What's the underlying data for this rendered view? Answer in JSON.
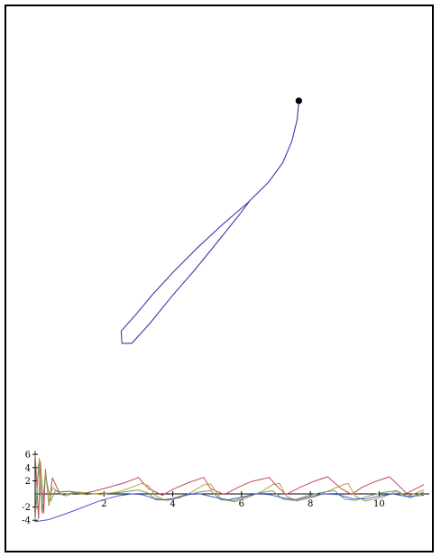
{
  "chart_data": [
    {
      "type": "line",
      "title": "",
      "xlabel": "",
      "ylabel": "",
      "grid": false,
      "series": [
        {
          "color": "#3a3aa8",
          "x": [
            7.65,
            7.6,
            7.45,
            7.2,
            6.8,
            6.2,
            5.5,
            4.8,
            4.1,
            3.5,
            3.0,
            2.6,
            2.62,
            2.9,
            3.4,
            4.05,
            4.7,
            5.35,
            5.95,
            6.25
          ],
          "y": [
            8.85,
            8.3,
            7.7,
            7.1,
            6.55,
            5.95,
            5.35,
            4.7,
            4.0,
            3.35,
            2.75,
            2.3,
            1.95,
            1.95,
            2.5,
            3.3,
            4.05,
            4.85,
            5.6,
            6.0
          ]
        }
      ],
      "markers": [
        {
          "x": 7.65,
          "y": 8.85,
          "color": "#000000"
        }
      ]
    },
    {
      "type": "line",
      "title": "",
      "xlabel": "",
      "ylabel": "",
      "xlim": [
        0,
        11.3
      ],
      "ylim": [
        -4.2,
        6.5
      ],
      "x_ticks": [
        2,
        4,
        6,
        8,
        10
      ],
      "x_tick_labels": [
        "2",
        "4",
        "6",
        "8",
        "10"
      ],
      "y_ticks": [
        -4,
        -2,
        2,
        4,
        6
      ],
      "y_tick_labels": [
        "-4",
        "-2",
        "2",
        "4",
        "6"
      ],
      "grid": false,
      "series": [
        {
          "color": "#c0485f",
          "x": [
            0.0,
            0.1,
            0.15,
            0.25,
            0.3,
            0.4,
            0.5,
            0.7,
            1.0,
            1.4,
            1.7,
            2.2,
            2.6,
            3.0,
            3.3,
            3.7,
            4.0,
            4.5,
            4.9,
            5.1,
            5.5,
            5.9,
            6.3,
            6.8,
            7.1,
            7.3,
            7.7,
            8.1,
            8.5,
            8.9,
            9.2,
            9.5,
            9.9,
            10.3,
            10.8,
            11.3
          ],
          "y": [
            6.0,
            -3.8,
            5.0,
            -3.0,
            3.8,
            -1.8,
            2.4,
            0.3,
            0.4,
            0.1,
            0.4,
            1.1,
            1.7,
            2.5,
            0.8,
            -0.2,
            0.7,
            1.8,
            2.5,
            0.8,
            -0.1,
            1.0,
            1.9,
            2.5,
            0.8,
            -0.1,
            1.0,
            1.9,
            2.6,
            0.8,
            -0.1,
            1.0,
            1.9,
            2.6,
            0.1,
            1.4
          ]
        },
        {
          "color": "#b3a13b",
          "x": [
            0.0,
            0.12,
            0.2,
            0.3,
            0.4,
            0.5,
            0.65,
            0.9,
            1.2,
            1.6,
            1.9,
            2.4,
            2.8,
            3.1,
            3.3,
            3.5,
            3.8,
            4.2,
            4.6,
            4.9,
            5.1,
            5.4,
            5.8,
            6.2,
            6.6,
            6.9,
            7.1,
            7.3,
            7.6,
            8.1,
            8.5,
            8.9,
            9.1,
            9.3,
            9.6,
            10.1,
            10.5,
            10.8,
            11.3
          ],
          "y": [
            -4.0,
            5.5,
            -3.0,
            3.5,
            -1.5,
            1.0,
            0.3,
            -0.3,
            0.3,
            0.1,
            -0.1,
            0.3,
            1.0,
            1.6,
            1.2,
            -0.3,
            -1.0,
            -0.6,
            0.4,
            1.4,
            1.5,
            -0.8,
            -1.2,
            -0.5,
            0.4,
            1.4,
            1.6,
            -0.3,
            -1.1,
            -0.5,
            0.4,
            1.3,
            1.6,
            -0.3,
            -1.1,
            -0.5,
            0.4,
            -0.4,
            0.6
          ]
        },
        {
          "color": "#6b9a66",
          "x": [
            0.0,
            0.1,
            0.2,
            0.3,
            0.45,
            0.6,
            0.8,
            1.1,
            1.5,
            1.9,
            2.3,
            2.7,
            3.0,
            3.3,
            3.5,
            3.9,
            4.4,
            4.8,
            5.1,
            5.4,
            5.8,
            6.2,
            6.6,
            6.9,
            7.2,
            7.5,
            7.9,
            8.3,
            8.7,
            9.0,
            9.3,
            9.7,
            10.1,
            10.5,
            10.9,
            11.3
          ],
          "y": [
            -3.6,
            4.6,
            -2.8,
            2.8,
            -1.0,
            0.6,
            -0.2,
            0.2,
            -0.1,
            0.1,
            0.1,
            0.4,
            0.6,
            0.1,
            -0.9,
            -0.9,
            -0.2,
            0.3,
            0.5,
            -0.9,
            -1.0,
            -0.3,
            0.2,
            0.5,
            -0.8,
            -1.0,
            -0.3,
            0.2,
            0.5,
            -0.8,
            -1.0,
            -0.3,
            0.2,
            0.5,
            -0.6,
            0.3
          ]
        },
        {
          "color": "#4a5ad0",
          "x": [
            0.0,
            0.4,
            0.9,
            1.4,
            1.9,
            2.4,
            2.8,
            3.1,
            3.4,
            3.7,
            4.0,
            4.4,
            4.8,
            5.2,
            5.6,
            6.0,
            6.4,
            6.8,
            7.2,
            7.6,
            8.0,
            8.4,
            8.8,
            9.2,
            9.6,
            10.0,
            10.4,
            10.8,
            11.3
          ],
          "y": [
            -4.2,
            -3.9,
            -3.0,
            -2.0,
            -1.0,
            -0.3,
            0.0,
            -0.1,
            -0.6,
            -0.9,
            -0.7,
            -0.1,
            0.0,
            -0.5,
            -0.9,
            -0.5,
            0.0,
            -0.1,
            -0.6,
            -0.9,
            -0.4,
            0.0,
            -0.1,
            -0.7,
            -0.8,
            -0.3,
            0.0,
            -0.4,
            -0.2
          ]
        }
      ]
    }
  ]
}
